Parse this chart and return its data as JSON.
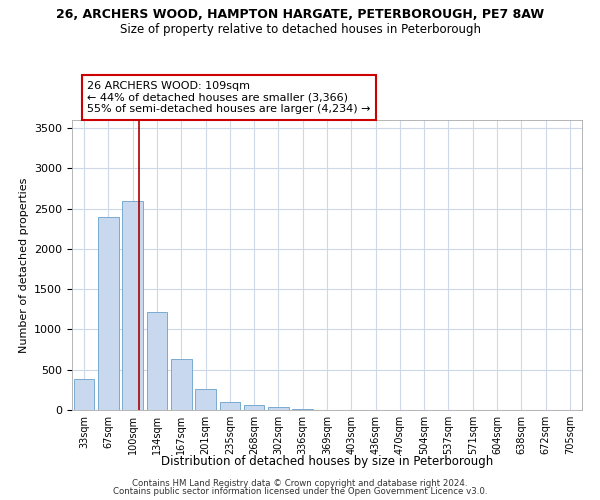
{
  "title1": "26, ARCHERS WOOD, HAMPTON HARGATE, PETERBOROUGH, PE7 8AW",
  "title2": "Size of property relative to detached houses in Peterborough",
  "xlabel": "Distribution of detached houses by size in Peterborough",
  "ylabel": "Number of detached properties",
  "bar_color": "#c8d8ee",
  "bar_edge_color": "#7aaad0",
  "categories": [
    "33sqm",
    "67sqm",
    "100sqm",
    "134sqm",
    "167sqm",
    "201sqm",
    "235sqm",
    "268sqm",
    "302sqm",
    "336sqm",
    "369sqm",
    "403sqm",
    "436sqm",
    "470sqm",
    "504sqm",
    "537sqm",
    "571sqm",
    "604sqm",
    "638sqm",
    "672sqm",
    "705sqm"
  ],
  "values": [
    390,
    2400,
    2600,
    1220,
    630,
    260,
    100,
    60,
    40,
    10,
    5,
    0,
    0,
    0,
    0,
    0,
    0,
    0,
    0,
    0,
    0
  ],
  "ylim": [
    0,
    3600
  ],
  "yticks": [
    0,
    500,
    1000,
    1500,
    2000,
    2500,
    3000,
    3500
  ],
  "vline_x_idx": 2.27,
  "vline_color": "#aa0000",
  "annotation_text": "26 ARCHERS WOOD: 109sqm\n← 44% of detached houses are smaller (3,366)\n55% of semi-detached houses are larger (4,234) →",
  "annotation_box_color": "#ffffff",
  "annotation_box_edge": "#cc0000",
  "footer1": "Contains HM Land Registry data © Crown copyright and database right 2024.",
  "footer2": "Contains public sector information licensed under the Open Government Licence v3.0.",
  "bg_color": "#ffffff",
  "grid_color": "#cdd8e8"
}
